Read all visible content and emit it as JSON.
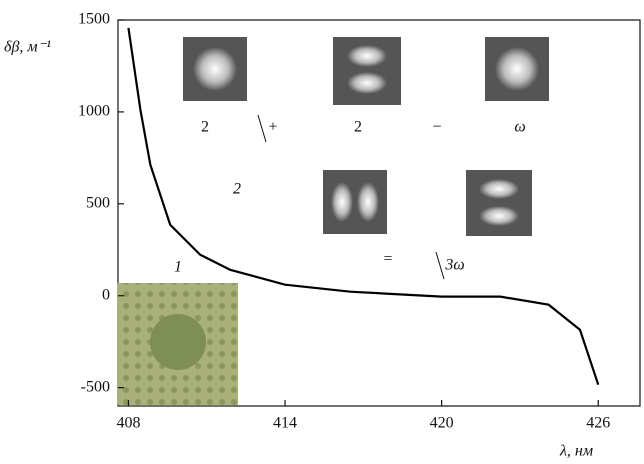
{
  "chart_data": {
    "type": "line",
    "x_label": "λ, нм",
    "y_label": "δβ, м⁻¹",
    "xlim": [
      407.6,
      427.6
    ],
    "xticks": [
      408,
      414,
      420,
      426
    ],
    "ylim": [
      -600,
      1500
    ],
    "yticks": [
      1500,
      1000,
      500,
      0,
      -500
    ],
    "x": [
      408,
      408.46,
      408.84,
      409.6,
      410.75,
      411.9,
      414,
      416.5,
      420,
      422.25,
      424.1,
      425.3,
      426
    ],
    "series": [
      {
        "name": "1",
        "color": "#000000",
        "values": [
          1457,
          1010,
          712,
          386,
          223,
          141,
          60,
          22,
          -5,
          -5,
          -49,
          -185,
          -484
        ]
      }
    ],
    "annotations": [
      "1",
      "2",
      "2",
      "+",
      "2",
      "−",
      "ω",
      "=",
      "3ω"
    ]
  }
}
